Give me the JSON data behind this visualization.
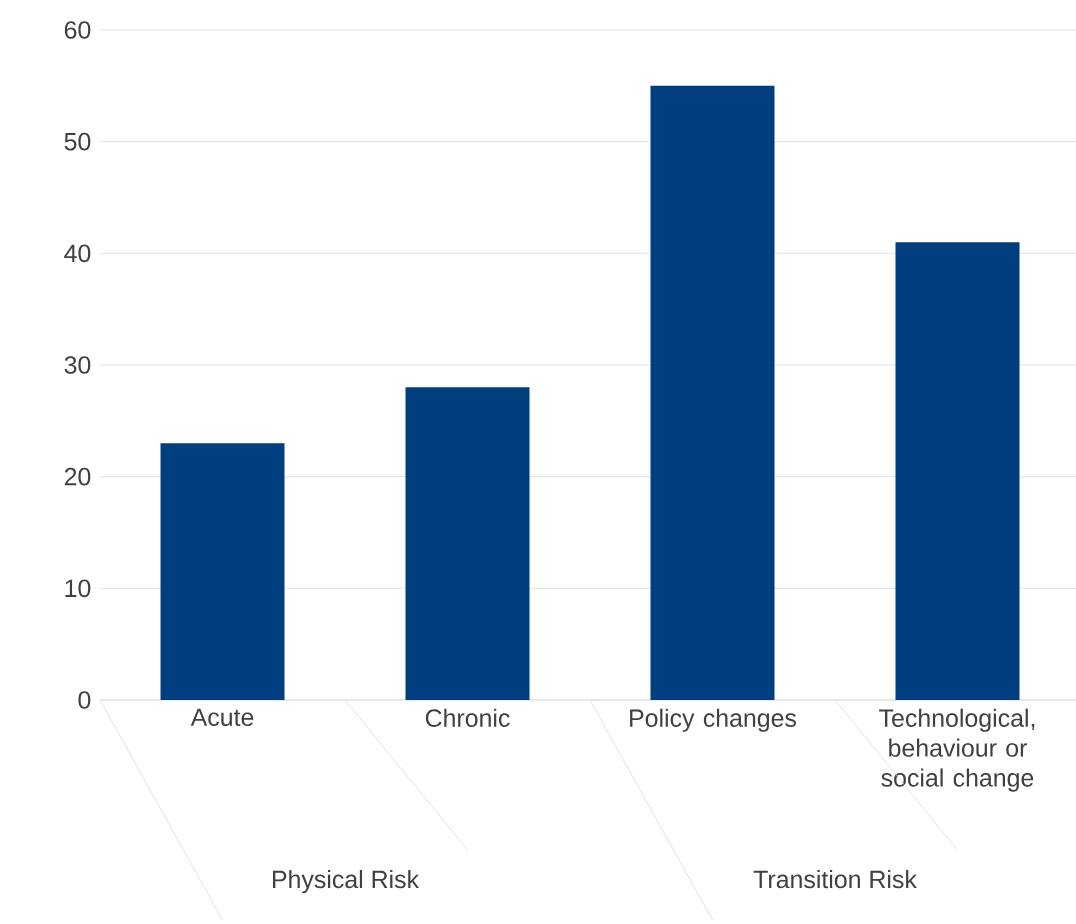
{
  "chart_data": {
    "type": "bar",
    "categories": [
      "Acute",
      "Chronic",
      "Policy changes",
      "Technological, behaviour or social change"
    ],
    "values": [
      23,
      28,
      55,
      41
    ],
    "color": "#003f7f",
    "ylim": [
      0,
      60
    ],
    "yticks": [
      0,
      10,
      20,
      30,
      40,
      50,
      60
    ],
    "grid": "y",
    "annotations": [
      "Physical Risk",
      "Transition Risk"
    ]
  }
}
